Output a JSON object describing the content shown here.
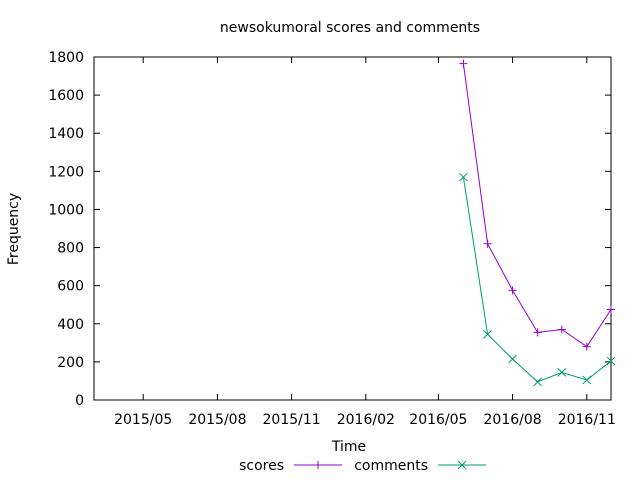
{
  "chart_data": {
    "type": "line",
    "title": "newsokumoral scores and comments",
    "xlabel": "Time",
    "ylabel": "Frequency",
    "ylim": [
      0,
      1800
    ],
    "yticks": [
      0,
      200,
      400,
      600,
      800,
      1000,
      1200,
      1400,
      1600,
      1800
    ],
    "xlim": [
      "2015-03-01",
      "2016-12-01"
    ],
    "xticks": [
      {
        "date": "2015-05-01",
        "label": "2015/05"
      },
      {
        "date": "2015-08-01",
        "label": "2015/08"
      },
      {
        "date": "2015-11-01",
        "label": "2015/11"
      },
      {
        "date": "2016-02-01",
        "label": "2016/02"
      },
      {
        "date": "2016-05-01",
        "label": "2016/05"
      },
      {
        "date": "2016-08-01",
        "label": "2016/08"
      },
      {
        "date": "2016-11-01",
        "label": "2016/11"
      }
    ],
    "x": [
      "2016-06-01",
      "2016-07-01",
      "2016-08-01",
      "2016-09-01",
      "2016-10-01",
      "2016-11-01",
      "2016-12-01"
    ],
    "series": [
      {
        "name": "scores",
        "color": "#9400d3",
        "marker": "plus",
        "values": [
          1765,
          820,
          575,
          355,
          370,
          280,
          475
        ]
      },
      {
        "name": "comments",
        "color": "#009e73",
        "marker": "cross",
        "values": [
          1170,
          345,
          215,
          95,
          145,
          105,
          205
        ]
      }
    ],
    "grid": false,
    "legend_position": "bottom-center"
  }
}
